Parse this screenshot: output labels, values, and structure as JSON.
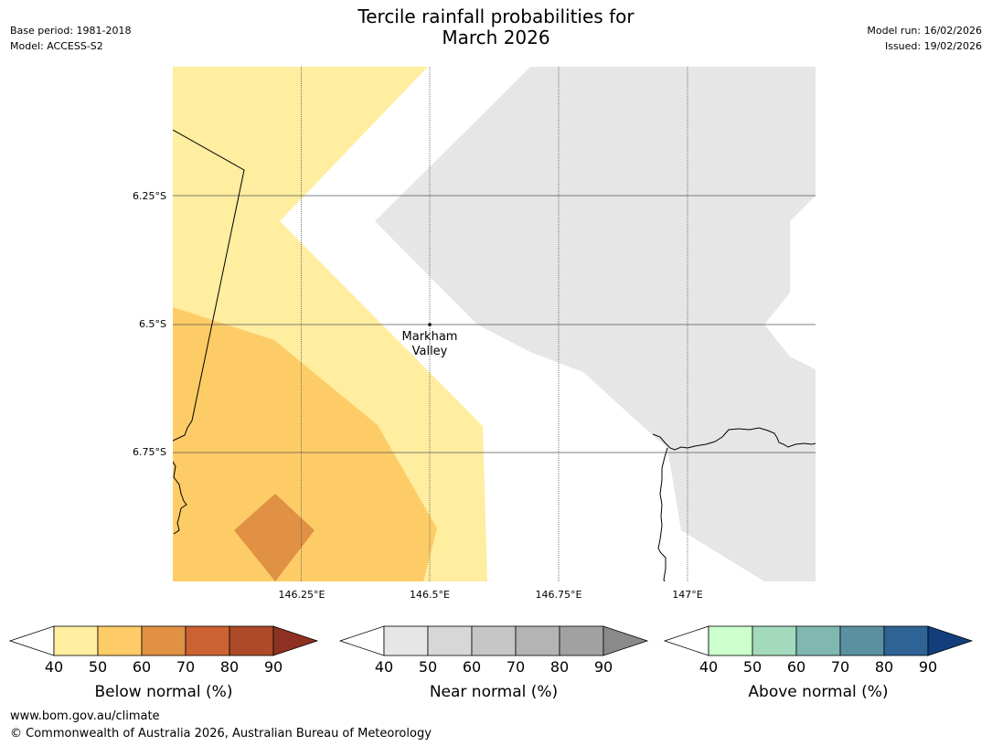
{
  "header": {
    "title_line1": "Tercile rainfall probabilities for",
    "title_line2": "March 2026",
    "base_period": "Base period: 1981-2018",
    "model": "Model: ACCESS-S2",
    "model_run": "Model run: 16/02/2026",
    "issued": "Issued: 19/02/2026"
  },
  "map": {
    "lat_labels": [
      "6.25°S",
      "6.5°S",
      "6.75°S"
    ],
    "lon_labels": [
      "146.25°E",
      "146.5°E",
      "146.75°E",
      "147°E"
    ],
    "place": {
      "name_line1": "Markham",
      "name_line2": "Valley"
    },
    "colors": {
      "below_40_50": "#ffeda0",
      "below_50_60": "#fecc67",
      "below_60_70": "#e09144",
      "near_40_50": "#e6e6e6",
      "coast": "#000000",
      "grid": "#555555"
    }
  },
  "colorbars": [
    {
      "name": "below",
      "label": "Below normal (%)",
      "ticks": [
        "40",
        "50",
        "60",
        "70",
        "80",
        "90"
      ],
      "colors": [
        "#ffeda0",
        "#fecc67",
        "#e09144",
        "#cc6232",
        "#ad4a28"
      ],
      "low_color": "#ffffff",
      "high_color": "#8f3121"
    },
    {
      "name": "near",
      "label": "Near normal (%)",
      "ticks": [
        "40",
        "50",
        "60",
        "70",
        "80",
        "90"
      ],
      "colors": [
        "#e6e6e6",
        "#d7d7d7",
        "#c6c6c6",
        "#b4b4b4",
        "#a1a1a1"
      ],
      "low_color": "#ffffff",
      "high_color": "#8a8a8a"
    },
    {
      "name": "above",
      "label": "Above normal (%)",
      "ticks": [
        "40",
        "50",
        "60",
        "70",
        "80",
        "90"
      ],
      "colors": [
        "#ccffcc",
        "#a3d9bc",
        "#80b8b0",
        "#5a91a0",
        "#2f6395"
      ],
      "low_color": "#ffffff",
      "high_color": "#123f7c"
    }
  ],
  "footer": {
    "website": "www.bom.gov.au/climate",
    "copyright": "© Commonwealth of Australia 2026, Australian Bureau of Meteorology"
  }
}
